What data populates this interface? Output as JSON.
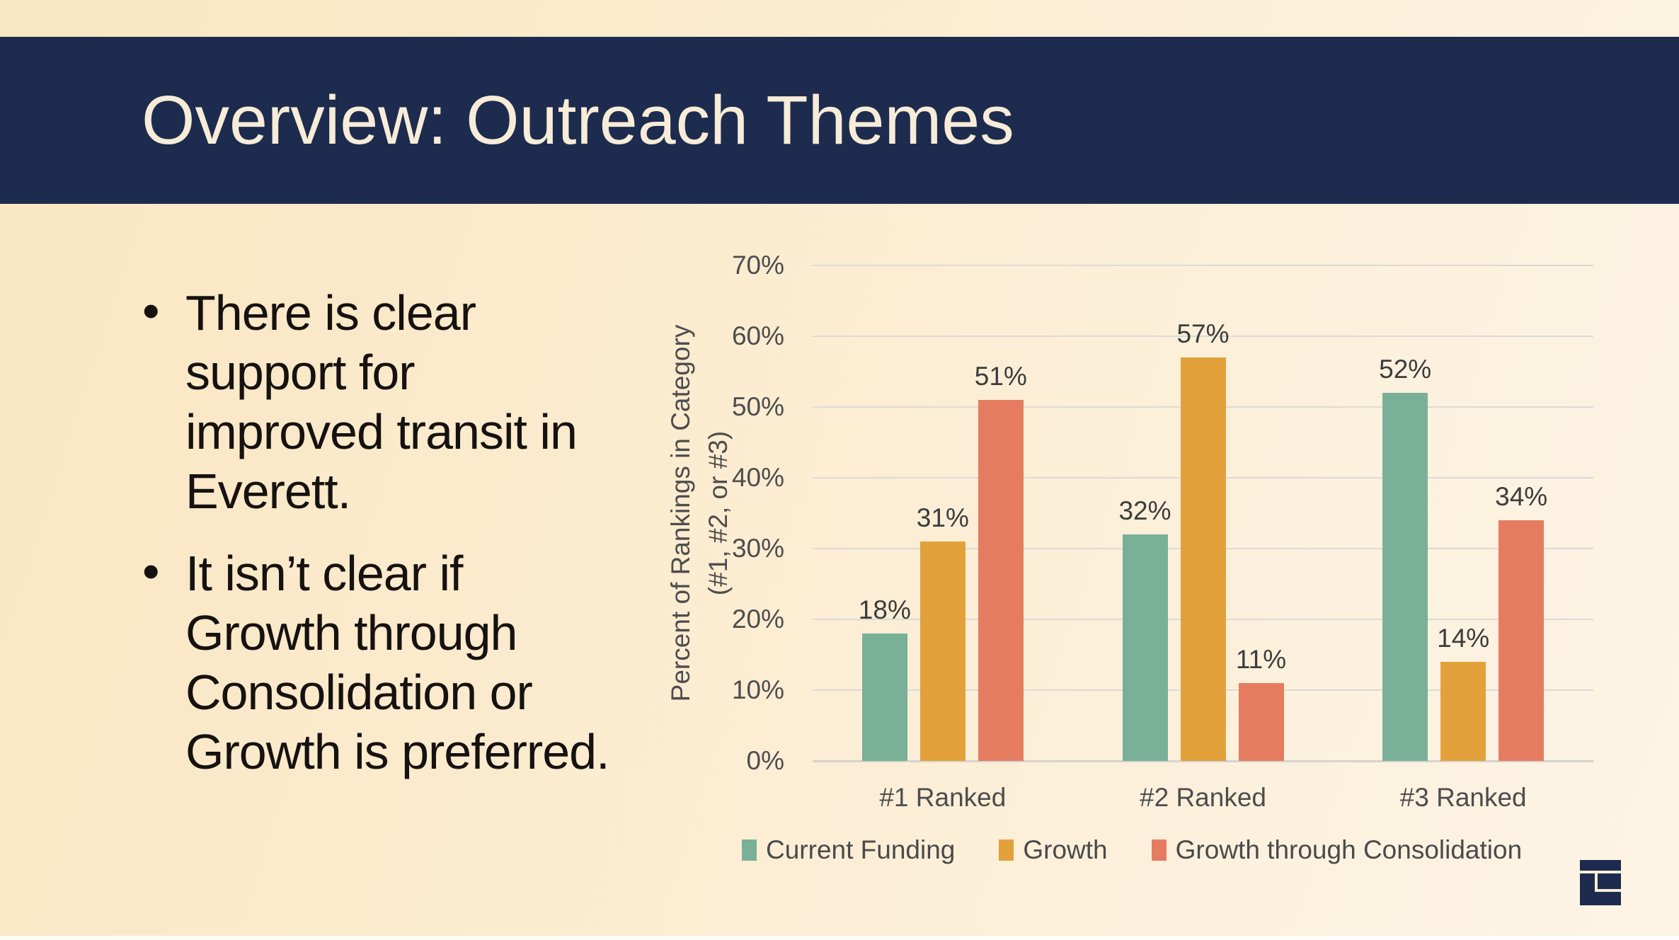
{
  "header": {
    "title": "Overview: Outreach Themes",
    "bg_color": "#1D2B4E",
    "text_color": "#F7ECD8"
  },
  "bullets": {
    "marker": "•",
    "text_color": "#151210",
    "items": [
      {
        "text": "There is clear support for improved transit in Everett.",
        "lines": [
          "There is clear",
          "support for",
          "improved transit in",
          "Everett."
        ]
      },
      {
        "text": "It isn’t clear if Growth through Consolidation or Growth is preferred.",
        "lines": [
          "It isn’t clear if",
          "Growth through",
          "Consolidation or",
          "Growth is preferred."
        ]
      }
    ]
  },
  "chart_data": {
    "type": "bar",
    "title": "",
    "categories": [
      "#1 Ranked",
      "#2 Ranked",
      "#3 Ranked"
    ],
    "series": [
      {
        "name": "Current Funding",
        "color": "#78B098",
        "values": [
          18,
          32,
          52
        ]
      },
      {
        "name": "Growth",
        "color": "#E3A13B",
        "values": [
          31,
          57,
          14
        ]
      },
      {
        "name": "Growth through Consolidation",
        "color": "#E57C60",
        "values": [
          51,
          11,
          34
        ]
      }
    ],
    "data_labels": true,
    "value_suffix": "%",
    "ylabel": "Percent of Rankings in Category (#1, #2, or #3)",
    "ylabel_lines": [
      "Percent of Rankings in Category",
      "(#1, #2, or #3)"
    ],
    "xlabel": "",
    "ylim": [
      0,
      70
    ],
    "ytick_step": 10,
    "ytick_suffix": "%",
    "grid": true,
    "legend_position": "bottom",
    "tick_color": "#4D4D4D",
    "value_label_color": "#3C3C3C",
    "legend_text_color": "#4A4A4A",
    "gridline_color": "#DCDAD7",
    "axisline_color": "#D5D3D0"
  },
  "logo": {
    "bg_color": "#1D2B4E",
    "line_color": "#FAEDD5"
  }
}
